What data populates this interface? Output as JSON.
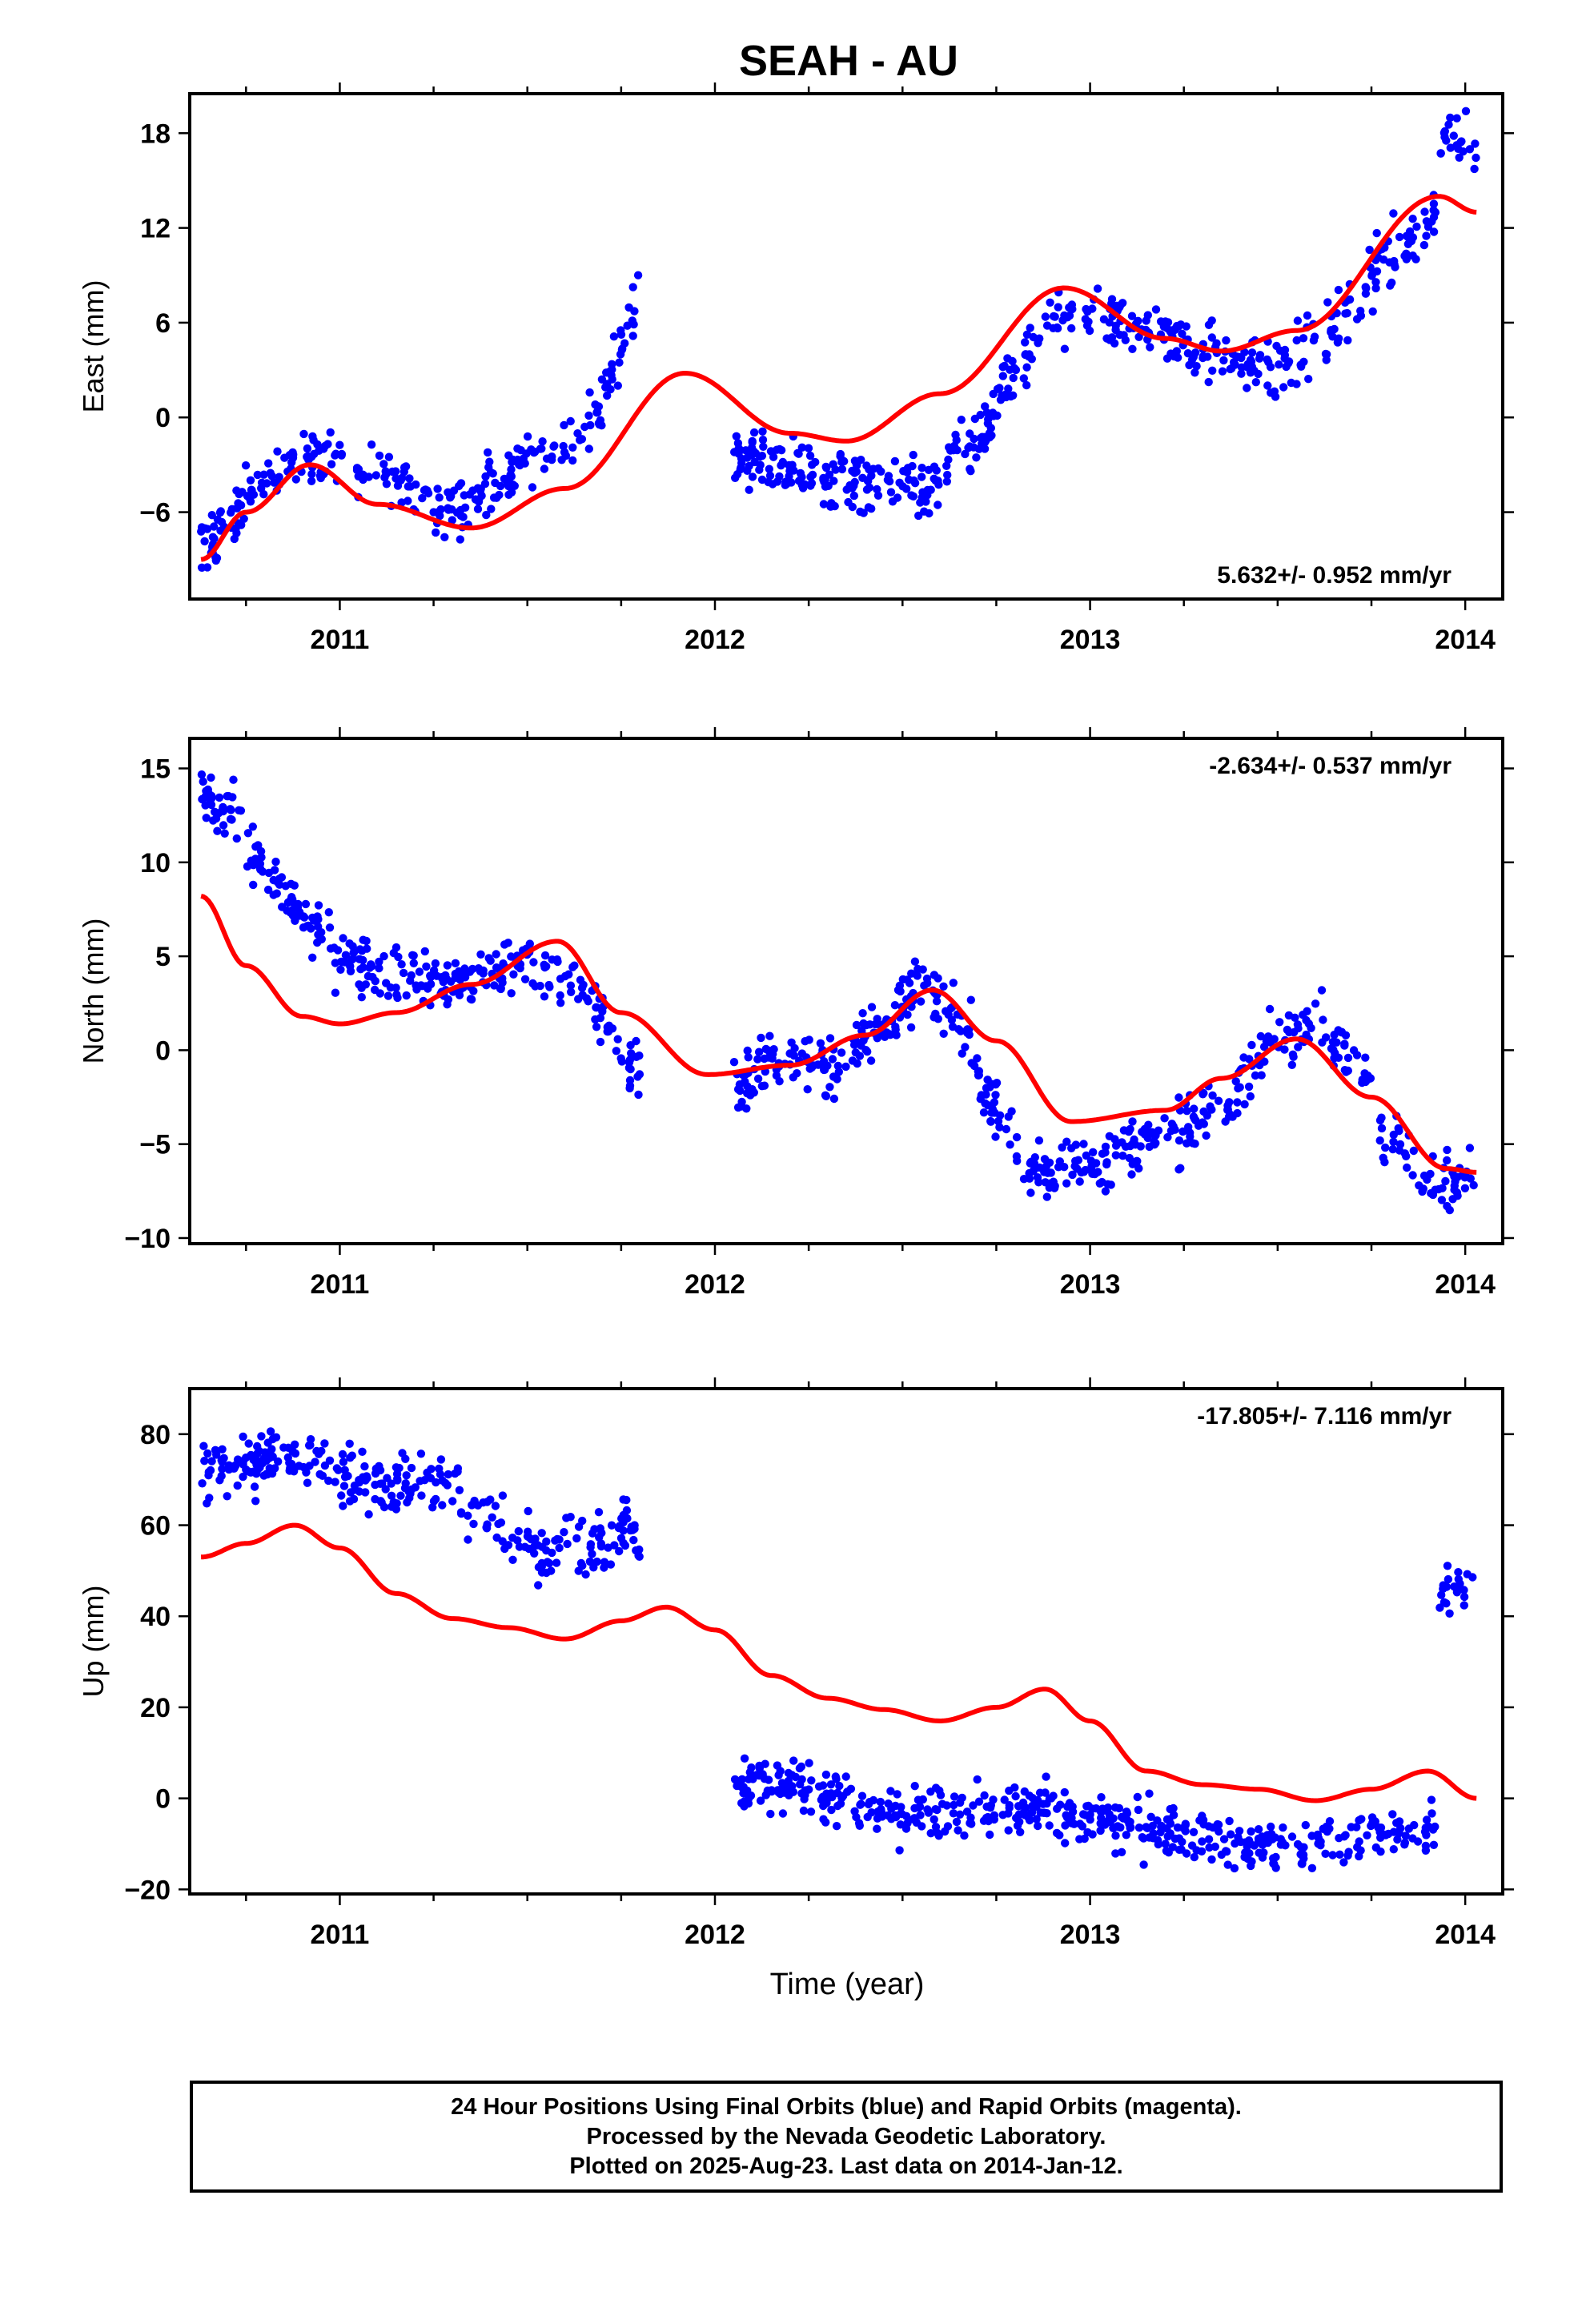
{
  "title": "SEAH - AU",
  "x_axis_label": "Time (year)",
  "caption": {
    "lines": [
      "24 Hour Positions Using Final Orbits (blue) and Rapid Orbits (magenta).",
      "Processed by the Nevada Geodetic Laboratory.",
      "Plotted on 2025-Aug-23. Last data on 2014-Jan-12."
    ]
  },
  "colors": {
    "points": "#0000ff",
    "model": "#ff0000",
    "frame": "#000000"
  },
  "chart_data": [
    {
      "type": "scatter",
      "component": "east",
      "ylabel": "East (mm)",
      "rate_label": "5.632+/- 0.952 mm/yr",
      "rate_position": "bottom-right",
      "xlim": [
        2010.6,
        2014.1
      ],
      "ylim": [
        -11.5,
        20.5
      ],
      "xticks": [
        2011,
        2012,
        2013,
        2014
      ],
      "yticks": [
        -6,
        0,
        6,
        12,
        18
      ],
      "grid": false,
      "series": [
        {
          "kind": "points",
          "segments": [
            {
              "x_range": [
                2010.63,
                2011.8
              ],
              "x": [
                2010.63,
                2010.7,
                2010.8,
                2010.9,
                2011.0,
                2011.1,
                2011.2,
                2011.3,
                2011.4,
                2011.5,
                2011.6,
                2011.7,
                2011.75,
                2011.8
              ],
              "y": [
                -8.5,
                -6.5,
                -4.0,
                -2.5,
                -3.0,
                -3.5,
                -4.5,
                -6.0,
                -4.5,
                -3.0,
                -2.0,
                0.5,
                5.0,
                6.5
              ],
              "scatter": 1.3
            },
            {
              "x_range": [
                2012.05,
                2014.03
              ],
              "x": [
                2012.05,
                2012.2,
                2012.4,
                2012.55,
                2012.7,
                2012.8,
                2012.9,
                2013.0,
                2013.1,
                2013.2,
                2013.3,
                2013.4,
                2013.5,
                2013.6,
                2013.7,
                2013.8,
                2013.9,
                2013.95,
                2014.03
              ],
              "y": [
                -2.5,
                -3.0,
                -4.0,
                -4.5,
                -1.5,
                2.5,
                6.0,
                6.5,
                5.5,
                5.0,
                4.5,
                3.5,
                3.0,
                5.0,
                7.0,
                10.5,
                11.5,
                18.0,
                17.0
              ],
              "scatter": 1.3
            }
          ]
        },
        {
          "kind": "model",
          "x": [
            2010.63,
            2010.75,
            2010.92,
            2011.1,
            2011.35,
            2011.6,
            2011.92,
            2012.2,
            2012.35,
            2012.6,
            2012.93,
            2013.2,
            2013.35,
            2013.55,
            2013.93,
            2014.03
          ],
          "y": [
            -9.0,
            -6.0,
            -3.0,
            -5.5,
            -7.0,
            -4.5,
            2.8,
            -1.0,
            -1.5,
            1.5,
            8.2,
            5.0,
            4.2,
            5.5,
            14.0,
            13.0
          ]
        }
      ]
    },
    {
      "type": "scatter",
      "component": "north",
      "ylabel": "North (mm)",
      "rate_label": "-2.634+/- 0.537 mm/yr",
      "rate_position": "top-right",
      "xlim": [
        2010.6,
        2014.1
      ],
      "ylim": [
        -10.3,
        16.6
      ],
      "xticks": [
        2011,
        2012,
        2013,
        2014
      ],
      "yticks": [
        -10,
        -5,
        0,
        5,
        10,
        15
      ],
      "grid": false,
      "series": [
        {
          "kind": "points",
          "segments": [
            {
              "x_range": [
                2010.63,
                2011.8
              ],
              "x": [
                2010.63,
                2010.7,
                2010.8,
                2010.9,
                2011.0,
                2011.1,
                2011.3,
                2011.45,
                2011.6,
                2011.7,
                2011.75,
                2011.8
              ],
              "y": [
                14.0,
                12.5,
                10.0,
                7.0,
                5.0,
                4.0,
                3.5,
                4.5,
                4.0,
                2.0,
                0.0,
                -1.5
              ],
              "scatter": 1.1
            },
            {
              "x_range": [
                2012.05,
                2014.03
              ],
              "x": [
                2012.05,
                2012.15,
                2012.3,
                2012.45,
                2012.55,
                2012.65,
                2012.75,
                2012.85,
                2013.0,
                2013.2,
                2013.35,
                2013.5,
                2013.6,
                2013.7,
                2013.8,
                2013.9,
                2014.03
              ],
              "y": [
                -2.0,
                -0.5,
                -1.0,
                1.5,
                3.5,
                1.5,
                -3.5,
                -6.5,
                -6.0,
                -4.5,
                -3.0,
                0.5,
                1.5,
                -0.5,
                -4.5,
                -7.0,
                -7.0
              ],
              "scatter": 1.1
            }
          ]
        },
        {
          "kind": "model",
          "x": [
            2010.63,
            2010.75,
            2010.9,
            2011.0,
            2011.15,
            2011.35,
            2011.58,
            2011.75,
            2011.98,
            2012.2,
            2012.4,
            2012.58,
            2012.75,
            2012.95,
            2013.2,
            2013.35,
            2013.55,
            2013.75,
            2013.95,
            2014.03
          ],
          "y": [
            8.2,
            4.5,
            1.8,
            1.4,
            2.0,
            3.5,
            5.8,
            2.0,
            -1.3,
            -0.8,
            0.8,
            3.2,
            0.5,
            -3.8,
            -3.2,
            -1.5,
            0.6,
            -2.5,
            -6.3,
            -6.5
          ]
        }
      ]
    },
    {
      "type": "scatter",
      "component": "up",
      "ylabel": "Up (mm)",
      "rate_label": "-17.805+/- 7.116 mm/yr",
      "rate_position": "top-right",
      "xlim": [
        2010.6,
        2014.1
      ],
      "ylim": [
        -21,
        90
      ],
      "xticks": [
        2011,
        2012,
        2013,
        2014
      ],
      "yticks": [
        -20,
        0,
        20,
        40,
        60,
        80
      ],
      "grid": false,
      "series": [
        {
          "kind": "points",
          "segments": [
            {
              "x_range": [
                2010.63,
                2011.8
              ],
              "x": [
                2010.63,
                2010.8,
                2010.9,
                2011.0,
                2011.1,
                2011.25,
                2011.4,
                2011.5,
                2011.6,
                2011.7,
                2011.77,
                2011.8
              ],
              "y": [
                72,
                74,
                76,
                72,
                68,
                70,
                62,
                55,
                55,
                56,
                62,
                55
              ],
              "scatter": 4.5
            },
            {
              "x_range": [
                2012.05,
                2012.8
              ],
              "x": [
                2012.05,
                2012.2,
                2012.4,
                2012.6,
                2012.8
              ],
              "y": [
                3,
                3,
                -2,
                -3,
                -2
              ],
              "scatter": 4.0
            },
            {
              "x_range": [
                2012.8,
                2013.92
              ],
              "x": [
                2012.8,
                2013.0,
                2013.2,
                2013.4,
                2013.6,
                2013.8,
                2013.92
              ],
              "y": [
                -2,
                -4,
                -8,
                -11,
                -10,
                -8,
                -7
              ],
              "scatter": 4.0
            },
            {
              "x_range": [
                2013.93,
                2014.03
              ],
              "x": [
                2013.93,
                2014.03
              ],
              "y": [
                46,
                46
              ],
              "scatter": 4.5
            }
          ]
        },
        {
          "kind": "model",
          "x": [
            2010.63,
            2010.75,
            2010.88,
            2011.0,
            2011.15,
            2011.3,
            2011.45,
            2011.6,
            2011.75,
            2011.87,
            2012.0,
            2012.15,
            2012.3,
            2012.45,
            2012.6,
            2012.75,
            2012.88,
            2013.0,
            2013.15,
            2013.3,
            2013.45,
            2013.6,
            2013.75,
            2013.9,
            2014.03
          ],
          "y": [
            53,
            56,
            60,
            55,
            45,
            39.5,
            37.5,
            35,
            39,
            42,
            37,
            27,
            22,
            19.5,
            17,
            20,
            24,
            17,
            6,
            3,
            2,
            -0.5,
            2,
            6,
            0
          ]
        }
      ]
    }
  ]
}
